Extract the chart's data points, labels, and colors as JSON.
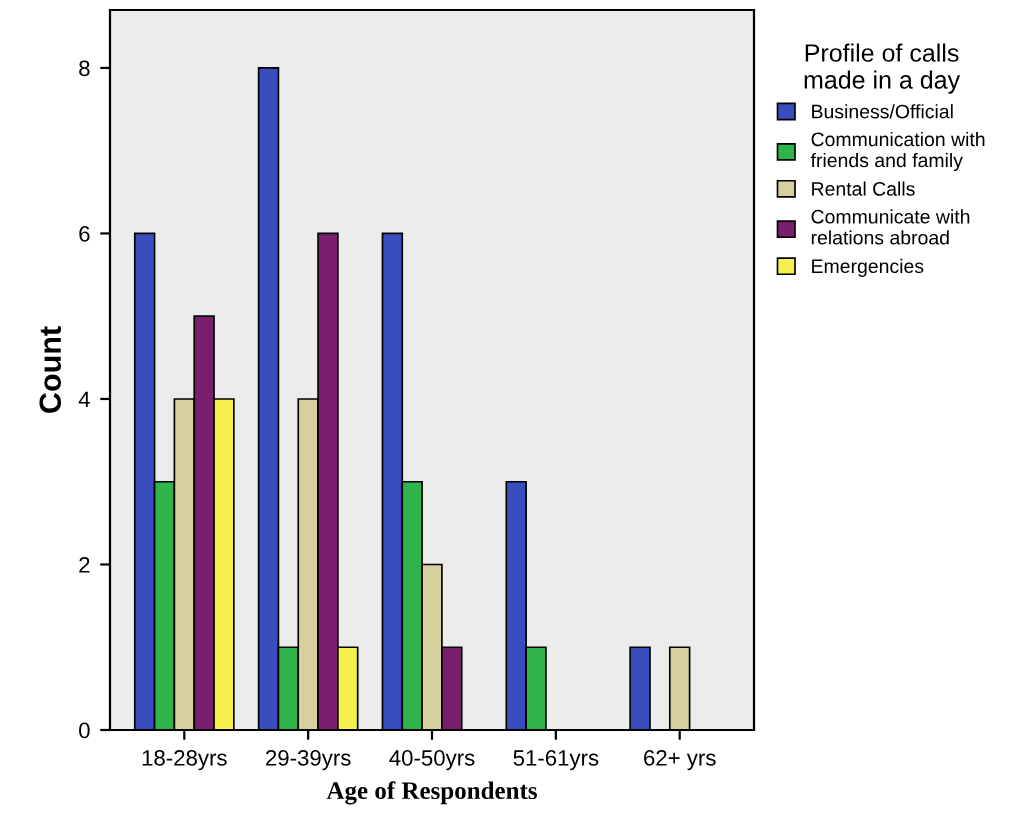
{
  "chart_data": {
    "type": "bar",
    "xlabel": "Age of Respondents",
    "ylabel": "Count",
    "legend_title": "Profile of calls\nmade in a day",
    "categories": [
      "18-28yrs",
      "29-39yrs",
      "40-50yrs",
      "51-61yrs",
      "62+ yrs"
    ],
    "series": [
      {
        "name": "Business/Official",
        "color": "#3a4dbd",
        "values": [
          6,
          8,
          6,
          3,
          1
        ]
      },
      {
        "name": "Communication with\nfriends and family",
        "color": "#2fb44b",
        "values": [
          3,
          1,
          3,
          1,
          0
        ]
      },
      {
        "name": "Rental Calls",
        "color": "#d6cf9e",
        "values": [
          4,
          4,
          2,
          0,
          1
        ]
      },
      {
        "name": "Communicate with\nrelations abroad",
        "color": "#7a1f6e",
        "values": [
          5,
          6,
          1,
          0,
          0
        ]
      },
      {
        "name": "Emergencies",
        "color": "#f6f04c",
        "values": [
          4,
          1,
          0,
          0,
          0
        ]
      }
    ],
    "ylim": [
      0,
      8.7
    ],
    "yticks": [
      0,
      2,
      4,
      6,
      8
    ],
    "grid": false,
    "legend": "right"
  }
}
